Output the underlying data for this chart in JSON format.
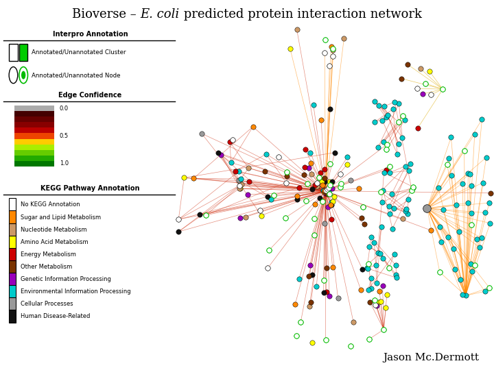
{
  "bg_color": "#ffffff",
  "title_prefix": "Bioverse – ",
  "title_italic": "E. coli",
  "title_suffix": " predicted protein interaction network",
  "author": "Jason Mc.Dermott",
  "interpro_title": "Interpro Annotation",
  "cluster_label": "Annotated/Unannotated Cluster",
  "node_label": "Annotated/Unannotated Node",
  "edge_title": "Edge Confidence",
  "edge_colors": [
    "#aaaaaa",
    "#440000",
    "#660000",
    "#880000",
    "#bb0000",
    "#ee4400",
    "#ffcc00",
    "#aaee00",
    "#66cc00",
    "#22aa00",
    "#007700"
  ],
  "edge_label_0": "0.0",
  "edge_label_5": "0.5",
  "edge_label_10": "1.0",
  "kegg_title": "KEGG Pathway Annotation",
  "kegg_items": [
    {
      "label": "No KEGG Annotation",
      "color": "#ffffff",
      "edge": "#000000"
    },
    {
      "label": "Sugar and Lipid Metabolism",
      "color": "#ff8800",
      "edge": "#000000"
    },
    {
      "label": "Nucleotide Metabolism",
      "color": "#cc9966",
      "edge": "#000000"
    },
    {
      "label": "Amino Acid Metabolism",
      "color": "#ffff00",
      "edge": "#000000"
    },
    {
      "label": "Energy Metabolism",
      "color": "#cc0000",
      "edge": "#000000"
    },
    {
      "label": "Other Metabolism",
      "color": "#7a3300",
      "edge": "#000000"
    },
    {
      "label": "Genetic Information Processing",
      "color": "#9900bb",
      "edge": "#000000"
    },
    {
      "label": "Environmental Information Processing",
      "color": "#00cccc",
      "edge": "#000000"
    },
    {
      "label": "Cellular Processes",
      "color": "#999999",
      "edge": "#000000"
    },
    {
      "label": "Human Disease-Related",
      "color": "#111111",
      "edge": "#000000"
    }
  ]
}
